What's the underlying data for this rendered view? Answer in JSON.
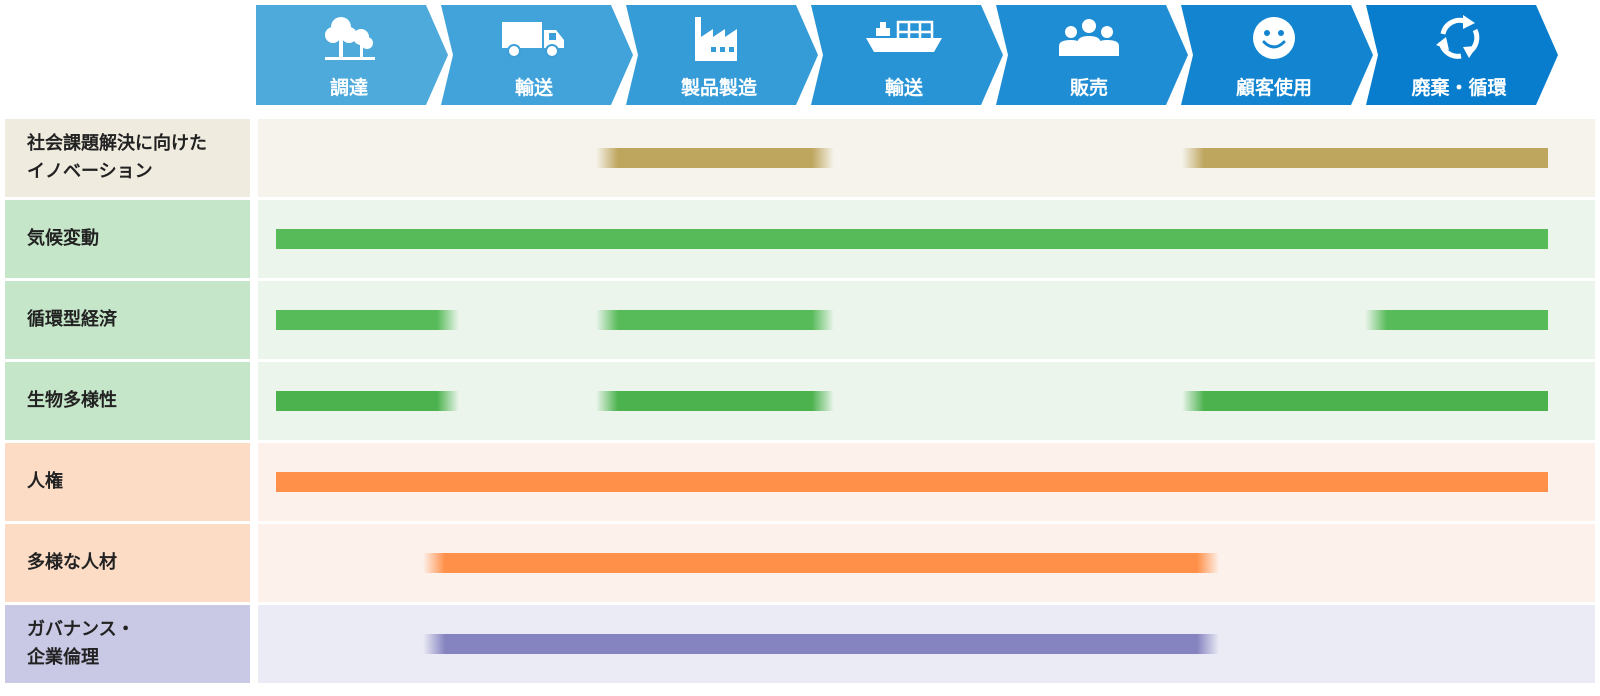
{
  "stages": [
    {
      "label": "調達",
      "icon": "tree-icon",
      "color": "#4faadc"
    },
    {
      "label": "輸送",
      "icon": "truck-icon",
      "color": "#41a3da"
    },
    {
      "label": "製品製造",
      "icon": "factory-icon",
      "color": "#359cd8"
    },
    {
      "label": "輸送",
      "icon": "ship-icon",
      "color": "#2994d5"
    },
    {
      "label": "販売",
      "icon": "people-icon",
      "color": "#1f8dd3"
    },
    {
      "label": "顧客使用",
      "icon": "smile-icon",
      "color": "#1385d0"
    },
    {
      "label": "廃棄・循環",
      "icon": "recycle-icon",
      "color": "#087dcd"
    }
  ],
  "rows": [
    {
      "label": "社会課題解決に向けた\nイノベーション",
      "label_bg": "#efebdf",
      "track_bg": "#f6f3ec",
      "bar_color": "#bea65e",
      "segments": [
        {
          "from": 1.8,
          "to": 3.1
        },
        {
          "from": 5.0,
          "to": 7.0
        }
      ]
    },
    {
      "label": "気候変動",
      "label_bg": "#c6e6c9",
      "track_bg": "#ebf5ec",
      "bar_color": "#58bb5a",
      "segments": [
        {
          "from": 0.05,
          "to": 7.0
        }
      ]
    },
    {
      "label": "循環型経済",
      "label_bg": "#c6e6c9",
      "track_bg": "#ebf5ec",
      "bar_color": "#58bb5a",
      "segments": [
        {
          "from": 0.05,
          "to": 1.05
        },
        {
          "from": 1.8,
          "to": 3.1
        },
        {
          "from": 6.0,
          "to": 7.0
        }
      ]
    },
    {
      "label": "生物多様性",
      "label_bg": "#c6e6c9",
      "track_bg": "#ebf5ec",
      "bar_color": "#4bb24d",
      "segments": [
        {
          "from": 0.05,
          "to": 1.05
        },
        {
          "from": 1.8,
          "to": 3.1
        },
        {
          "from": 5.0,
          "to": 7.0
        }
      ]
    },
    {
      "label": "人権",
      "label_bg": "#fddcc6",
      "track_bg": "#fdf1eb",
      "bar_color": "#ff9049",
      "segments": [
        {
          "from": 0.05,
          "to": 7.0
        }
      ]
    },
    {
      "label": "多様な人材",
      "label_bg": "#fddcc6",
      "track_bg": "#fdf1eb",
      "bar_color": "#ff9049",
      "segments": [
        {
          "from": 0.85,
          "to": 5.2
        }
      ]
    },
    {
      "label": "ガバナンス・\n企業倫理",
      "label_bg": "#c9c8e5",
      "track_bg": "#ebebf5",
      "bar_color": "#8684c0",
      "segments": [
        {
          "from": 0.85,
          "to": 5.2
        }
      ]
    }
  ]
}
